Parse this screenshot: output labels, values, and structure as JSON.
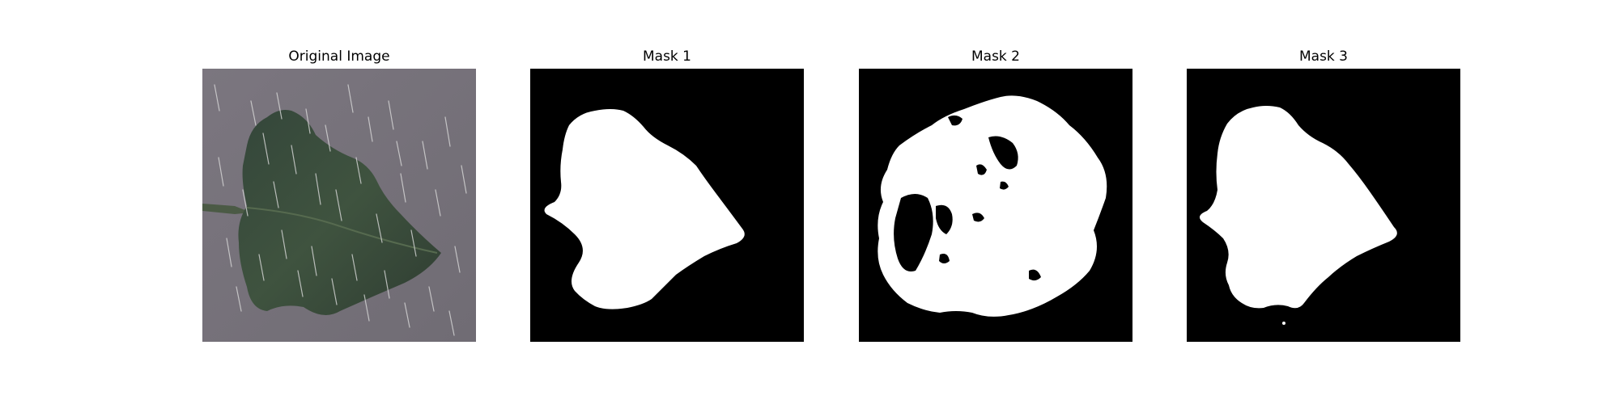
{
  "figure": {
    "panels": [
      {
        "id": "original",
        "title": "Original Image"
      },
      {
        "id": "mask1",
        "title": "Mask 1"
      },
      {
        "id": "mask2",
        "title": "Mask 2"
      },
      {
        "id": "mask3",
        "title": "Mask 3"
      }
    ]
  },
  "colors": {
    "background": "#ffffff",
    "mask_background": "#000000",
    "mask_foreground": "#ffffff",
    "photo_background": "#77737b",
    "leaf": "#3b4d3c",
    "rain_streak": "#d8d8d8"
  }
}
